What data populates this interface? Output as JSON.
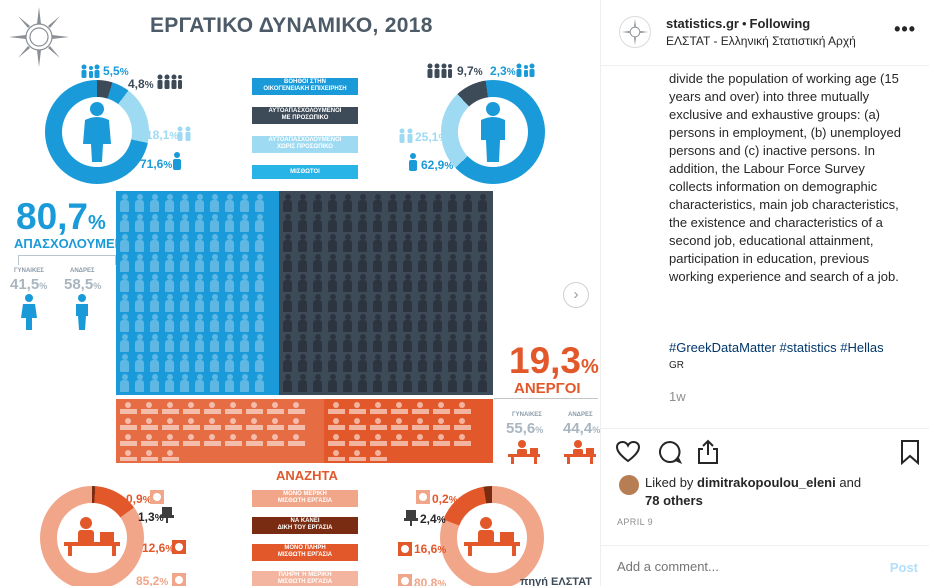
{
  "post": {
    "title": "ΕΡΓΑΤΙΚΟ ΔΥΝΑΜΙΚΟ, 2018",
    "colors": {
      "blue": "#1a9ad8",
      "dark": "#3d4a58",
      "light_blue": "#9fdaf3",
      "orange": "#e2582a",
      "pale_orange": "#f1a589",
      "brown": "#7a2c12"
    },
    "women_donut": {
      "values": [
        {
          "value": "5,5",
          "unit": "%",
          "icon": "family-icon"
        },
        {
          "value": "4,8",
          "unit": "%",
          "icon": "group-icon"
        },
        {
          "value": "18,1",
          "unit": "%",
          "icon": "group-icon"
        },
        {
          "value": "71,6",
          "unit": "%",
          "icon": "person-icon"
        }
      ]
    },
    "men_donut": {
      "values": [
        {
          "value": "9,7",
          "unit": "%",
          "icon": "group-icon"
        },
        {
          "value": "2,3",
          "unit": "%",
          "icon": "family-icon"
        },
        {
          "value": "25,1",
          "unit": "%",
          "icon": "group-icon"
        },
        {
          "value": "62,9",
          "unit": "%",
          "icon": "person-icon"
        }
      ]
    },
    "legend": [
      {
        "line1": "ΒΟΗΘΟΙ ΣΤΗΝ",
        "line2": "ΟΙΚΟΓΕΝΕΙΑΚΗ ΕΠΙΧΕΙΡΗΣΗ",
        "color": "#1a9ad8"
      },
      {
        "line1": "ΑΥΤΟΑΠΑΣΧΟΛΟΥΜΕΝΟΙ",
        "line2": "ΜΕ ΠΡΟΣΩΠΙΚΟ",
        "color": "#3d4a58"
      },
      {
        "line1": "ΑΥΤΟΑΠΑΣΧΟΛΟΥΜΕΝΟΙ",
        "line2": "ΧΩΡΙΣ ΠΡΟΣΩΠΙΚΟ",
        "color": "#9fdaf3"
      },
      {
        "line1": "ΜΙΣΘΩΤΟΙ",
        "line2": "",
        "color": "#29b4e8"
      }
    ],
    "employed": {
      "value": "80,7",
      "unit": "%",
      "label": "ΑΠΑΣΧΟΛΟΥΜΕΝΟΙ",
      "women_label": "ΓΥΝΑΙΚΕΣ",
      "men_label": "ΑΝΔΡΕΣ",
      "women": "41,5",
      "men": "58,5",
      "share_unit": "%"
    },
    "unemployed": {
      "value": "19,3",
      "unit": "%",
      "label": "ΑΝΕΡΓΟΙ",
      "women_label": "ΓΥΝΑΙΚΕΣ",
      "men_label": "ΑΝΔΡΕΣ",
      "women": "55,6",
      "men": "44,4",
      "share_unit": "%"
    },
    "seeking": {
      "title": "ΑΝΑΖΗΤΑ",
      "legend": [
        {
          "line1": "ΜΟΝΟ ΜΕΡΙΚΗ",
          "line2": "ΜΙΣΘΩΤΗ ΕΡΓΑΣΙΑ",
          "color": "#f1a589"
        },
        {
          "line1": "ΝΑ ΚΑΝΕΙ",
          "line2": "ΔΙΚΗ ΤΟΥ ΕΡΓΑΣΙΑ",
          "color": "#7a2c12"
        },
        {
          "line1": "ΜΟΝΟ ΠΛΗΡΗ",
          "line2": "ΜΙΣΘΩΤΗ ΕΡΓΑΣΙΑ",
          "color": "#e2582a"
        },
        {
          "line1": "ΠΛΗΡΗ Ή ΜΕΡΙΚΗ",
          "line2": "ΜΙΣΘΩΤΗ ΕΡΓΑΣΙΑ",
          "color": "#f3b59f"
        }
      ],
      "women_values": [
        {
          "value": "0,9",
          "unit": "%"
        },
        {
          "value": "1,3",
          "unit": "%"
        },
        {
          "value": "12,6",
          "unit": "%"
        },
        {
          "value": "85,2",
          "unit": "%"
        }
      ],
      "men_values": [
        {
          "value": "0,2",
          "unit": "%"
        },
        {
          "value": "2,4",
          "unit": "%"
        },
        {
          "value": "16,6",
          "unit": "%"
        },
        {
          "value": "80,8",
          "unit": "%"
        }
      ]
    },
    "source_text": "πηγή ΕΛΣΤΑΤ"
  },
  "panel": {
    "account": "statistics.gr",
    "separator": "•",
    "follow_state": "Following",
    "account_subtitle": "ΕΛΣΤΑΤ - Ελληνική Στατιστική Αρχή",
    "more_icon": "more-options-icon",
    "caption": "divide the population of working age (15 years and over) into three mutually exclusive and exhaustive groups: (a) persons in employment, (b) unemployed persons and (c) inactive persons. In addition, the Labour Force Survey collects information on demographic characteristics, main job characteristics, the existence and characteristics of a second job, educational attainment, participation in education, previous working experience and search of a job.",
    "hashtags": "#GreekDataMatter #statistics #Hellas",
    "lang": "GR",
    "age": "1w",
    "liked_prefix": "Liked by",
    "liker": "dimitrakopoulou_eleni",
    "liked_and": "and",
    "others": "78 others",
    "date": "APRIL 9",
    "comment_placeholder": "Add a comment...",
    "post_label": "Post"
  }
}
